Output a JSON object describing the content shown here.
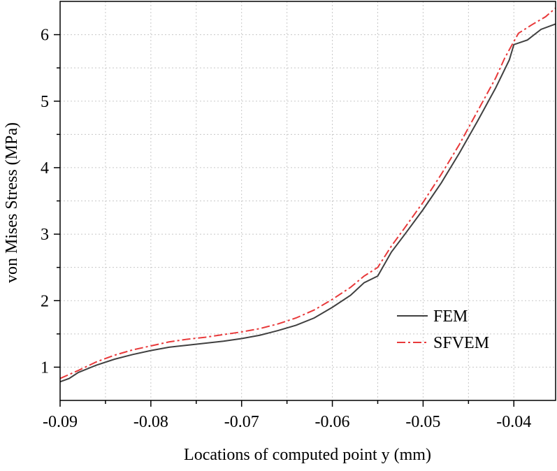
{
  "chart_data": {
    "type": "line",
    "x_label": "Locations of computed point y (mm)",
    "y_label": "von Mises Stress (MPa)",
    "xlim": [
      -0.09,
      -0.0354
    ],
    "ylim": [
      0.5,
      6.5
    ],
    "xticks": [
      -0.09,
      -0.08,
      -0.07,
      -0.06,
      -0.05,
      -0.04
    ],
    "yticks": [
      1,
      2,
      3,
      4,
      5,
      6
    ],
    "x_minor_ticks": [
      -0.085,
      -0.075,
      -0.065,
      -0.055,
      -0.045,
      -0.035
    ],
    "y_minor_ticks": [
      1.5,
      2.5,
      3.5,
      4.5,
      5.5
    ],
    "grid": true,
    "legend": "lower right",
    "series": [
      {
        "name": "FEM",
        "color": "#404040",
        "dash": "solid",
        "x": [
          -0.09,
          -0.089,
          -0.088,
          -0.086,
          -0.084,
          -0.082,
          -0.08,
          -0.078,
          -0.076,
          -0.074,
          -0.072,
          -0.07,
          -0.068,
          -0.066,
          -0.064,
          -0.062,
          -0.06,
          -0.058,
          -0.0565,
          -0.055,
          -0.0535,
          -0.052,
          -0.05,
          -0.048,
          -0.046,
          -0.044,
          -0.042,
          -0.0405,
          -0.04,
          -0.0385,
          -0.037,
          -0.0354
        ],
        "values": [
          0.78,
          0.83,
          0.92,
          1.03,
          1.12,
          1.19,
          1.25,
          1.3,
          1.33,
          1.36,
          1.39,
          1.43,
          1.48,
          1.55,
          1.63,
          1.74,
          1.9,
          2.08,
          2.27,
          2.37,
          2.73,
          3.0,
          3.37,
          3.77,
          4.22,
          4.7,
          5.2,
          5.62,
          5.85,
          5.92,
          6.08,
          6.16
        ]
      },
      {
        "name": "SFVEM",
        "color": "#e8393a",
        "dash": "dashdot",
        "x": [
          -0.09,
          -0.088,
          -0.086,
          -0.084,
          -0.082,
          -0.08,
          -0.078,
          -0.076,
          -0.074,
          -0.072,
          -0.07,
          -0.068,
          -0.066,
          -0.064,
          -0.062,
          -0.06,
          -0.058,
          -0.0565,
          -0.055,
          -0.0535,
          -0.052,
          -0.05,
          -0.048,
          -0.046,
          -0.044,
          -0.042,
          -0.041,
          -0.0395,
          -0.038,
          -0.0365,
          -0.0354
        ],
        "values": [
          0.83,
          0.95,
          1.08,
          1.18,
          1.26,
          1.32,
          1.38,
          1.42,
          1.45,
          1.49,
          1.53,
          1.58,
          1.65,
          1.74,
          1.86,
          2.02,
          2.2,
          2.37,
          2.5,
          2.82,
          3.1,
          3.48,
          3.9,
          4.35,
          4.85,
          5.35,
          5.65,
          6.02,
          6.15,
          6.27,
          6.4
        ]
      }
    ]
  }
}
